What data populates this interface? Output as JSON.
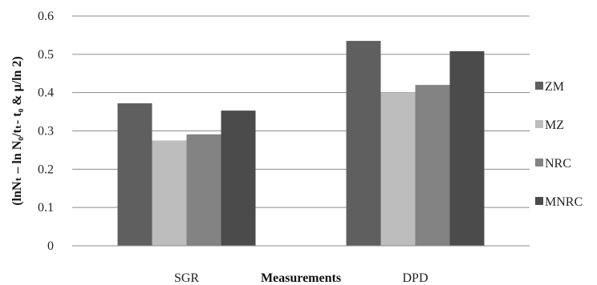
{
  "chart_data": {
    "type": "bar",
    "title": "",
    "xlabel": "Measurements",
    "ylabel": "(lnNₜ – ln N₀/tₜ- t₀ & μ/ln 2)",
    "ylim": [
      0,
      0.6
    ],
    "yticks": [
      "0",
      "0.1",
      "0.2",
      "0.3",
      "0.4",
      "0.5",
      "0.6"
    ],
    "categories": [
      "SGR",
      "DPD"
    ],
    "series": [
      {
        "name": "ZM",
        "values": [
          0.372,
          0.535
        ],
        "color": "#5f5f5f"
      },
      {
        "name": "MZ",
        "values": [
          0.275,
          0.4
        ],
        "color": "#bdbdbd"
      },
      {
        "name": "NRC",
        "values": [
          0.291,
          0.42
        ],
        "color": "#838383"
      },
      {
        "name": "MNRC",
        "values": [
          0.353,
          0.508
        ],
        "color": "#4b4b4b"
      }
    ],
    "grid": true,
    "legend_position": "right"
  }
}
